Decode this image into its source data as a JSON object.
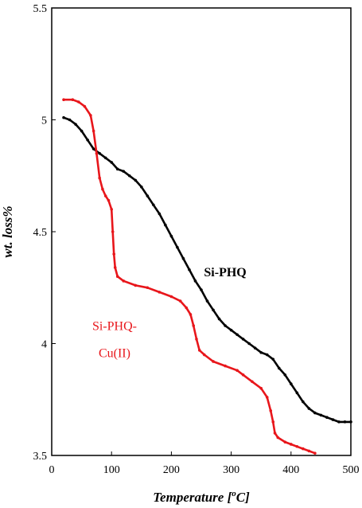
{
  "chart_data": {
    "type": "line",
    "title": "",
    "xlabel": "Temperature [",
    "xlabel_sup": "o",
    "xlabel_suffix": "C]",
    "ylabel": "wt. loss%",
    "xlim": [
      0,
      500
    ],
    "ylim": [
      3.5,
      5.5
    ],
    "xticks": [
      0,
      100,
      200,
      300,
      400,
      500
    ],
    "yticks": [
      3.5,
      4,
      4.5,
      5,
      5.5
    ],
    "ytick_labels": [
      "3.5",
      "4",
      "4.5",
      "5",
      "5.5"
    ],
    "grid": false,
    "legend": "none",
    "series": [
      {
        "name": "Si-PHQ",
        "color": "#000000",
        "points": [
          [
            20,
            5.01
          ],
          [
            30,
            5.0
          ],
          [
            40,
            4.98
          ],
          [
            50,
            4.95
          ],
          [
            60,
            4.91
          ],
          [
            70,
            4.87
          ],
          [
            80,
            4.85
          ],
          [
            90,
            4.83
          ],
          [
            100,
            4.81
          ],
          [
            110,
            4.78
          ],
          [
            120,
            4.77
          ],
          [
            130,
            4.75
          ],
          [
            140,
            4.73
          ],
          [
            150,
            4.7
          ],
          [
            160,
            4.66
          ],
          [
            170,
            4.62
          ],
          [
            180,
            4.58
          ],
          [
            190,
            4.53
          ],
          [
            200,
            4.48
          ],
          [
            210,
            4.43
          ],
          [
            220,
            4.38
          ],
          [
            230,
            4.33
          ],
          [
            240,
            4.28
          ],
          [
            250,
            4.24
          ],
          [
            260,
            4.19
          ],
          [
            270,
            4.15
          ],
          [
            280,
            4.11
          ],
          [
            290,
            4.08
          ],
          [
            300,
            4.06
          ],
          [
            310,
            4.04
          ],
          [
            320,
            4.02
          ],
          [
            330,
            4.0
          ],
          [
            340,
            3.98
          ],
          [
            350,
            3.96
          ],
          [
            360,
            3.95
          ],
          [
            370,
            3.93
          ],
          [
            380,
            3.89
          ],
          [
            390,
            3.86
          ],
          [
            400,
            3.82
          ],
          [
            410,
            3.78
          ],
          [
            420,
            3.74
          ],
          [
            430,
            3.71
          ],
          [
            440,
            3.69
          ],
          [
            450,
            3.68
          ],
          [
            460,
            3.67
          ],
          [
            470,
            3.66
          ],
          [
            480,
            3.65
          ],
          [
            490,
            3.65
          ],
          [
            500,
            3.65
          ]
        ]
      },
      {
        "name": "Si-PHQ-Cu(II)",
        "color": "#e8161b",
        "points": [
          [
            20,
            5.09
          ],
          [
            35,
            5.09
          ],
          [
            45,
            5.08
          ],
          [
            55,
            5.06
          ],
          [
            65,
            5.02
          ],
          [
            70,
            4.95
          ],
          [
            75,
            4.85
          ],
          [
            80,
            4.74
          ],
          [
            85,
            4.69
          ],
          [
            90,
            4.66
          ],
          [
            95,
            4.64
          ],
          [
            100,
            4.6
          ],
          [
            102,
            4.5
          ],
          [
            104,
            4.4
          ],
          [
            106,
            4.34
          ],
          [
            110,
            4.3
          ],
          [
            120,
            4.28
          ],
          [
            140,
            4.26
          ],
          [
            160,
            4.25
          ],
          [
            180,
            4.23
          ],
          [
            200,
            4.21
          ],
          [
            215,
            4.19
          ],
          [
            225,
            4.16
          ],
          [
            232,
            4.13
          ],
          [
            237,
            4.08
          ],
          [
            242,
            4.02
          ],
          [
            247,
            3.97
          ],
          [
            255,
            3.95
          ],
          [
            270,
            3.92
          ],
          [
            290,
            3.9
          ],
          [
            310,
            3.88
          ],
          [
            320,
            3.86
          ],
          [
            335,
            3.83
          ],
          [
            350,
            3.8
          ],
          [
            360,
            3.76
          ],
          [
            366,
            3.7
          ],
          [
            370,
            3.65
          ],
          [
            373,
            3.6
          ],
          [
            378,
            3.58
          ],
          [
            390,
            3.56
          ],
          [
            400,
            3.55
          ],
          [
            410,
            3.54
          ],
          [
            420,
            3.53
          ],
          [
            430,
            3.52
          ],
          [
            440,
            3.51
          ]
        ]
      }
    ],
    "annotations": [
      {
        "text": "Si-PHQ",
        "x": 290,
        "y": 4.3,
        "color": "#000000",
        "bold": true
      },
      {
        "text": "Si-PHQ-",
        "x": 105,
        "y": 4.06,
        "color": "#e8161b",
        "bold": false
      },
      {
        "text": "Cu(II)",
        "x": 105,
        "y": 3.94,
        "color": "#e8161b",
        "bold": false
      }
    ]
  }
}
